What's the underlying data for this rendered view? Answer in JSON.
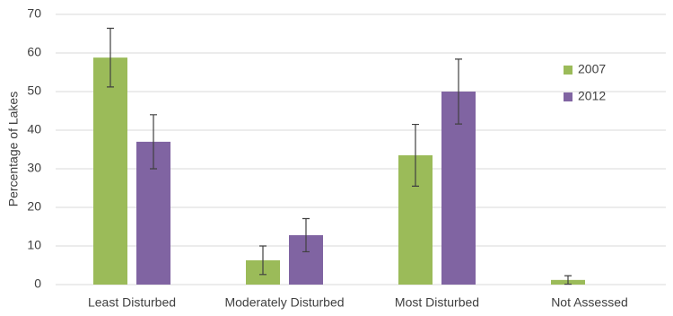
{
  "chart_data": {
    "type": "bar",
    "y_label": "Percentage of Lakes",
    "categories": [
      "Least Disturbed",
      "Moderately Disturbed",
      "Most Disturbed",
      "Not Assessed"
    ],
    "series": [
      {
        "name": "2007",
        "color": "#9bbb59",
        "values": [
          58.8,
          6.3,
          33.5,
          1.2
        ],
        "errors": [
          7.6,
          3.7,
          8,
          1.1
        ]
      },
      {
        "name": "2012",
        "color": "#8064a2",
        "values": [
          37,
          12.8,
          50,
          0
        ],
        "errors": [
          7,
          4.3,
          8.4,
          0
        ]
      }
    ],
    "ylim": [
      0,
      70
    ],
    "yticks": [
      0,
      10,
      20,
      30,
      40,
      50,
      60,
      70
    ],
    "grid": true
  }
}
